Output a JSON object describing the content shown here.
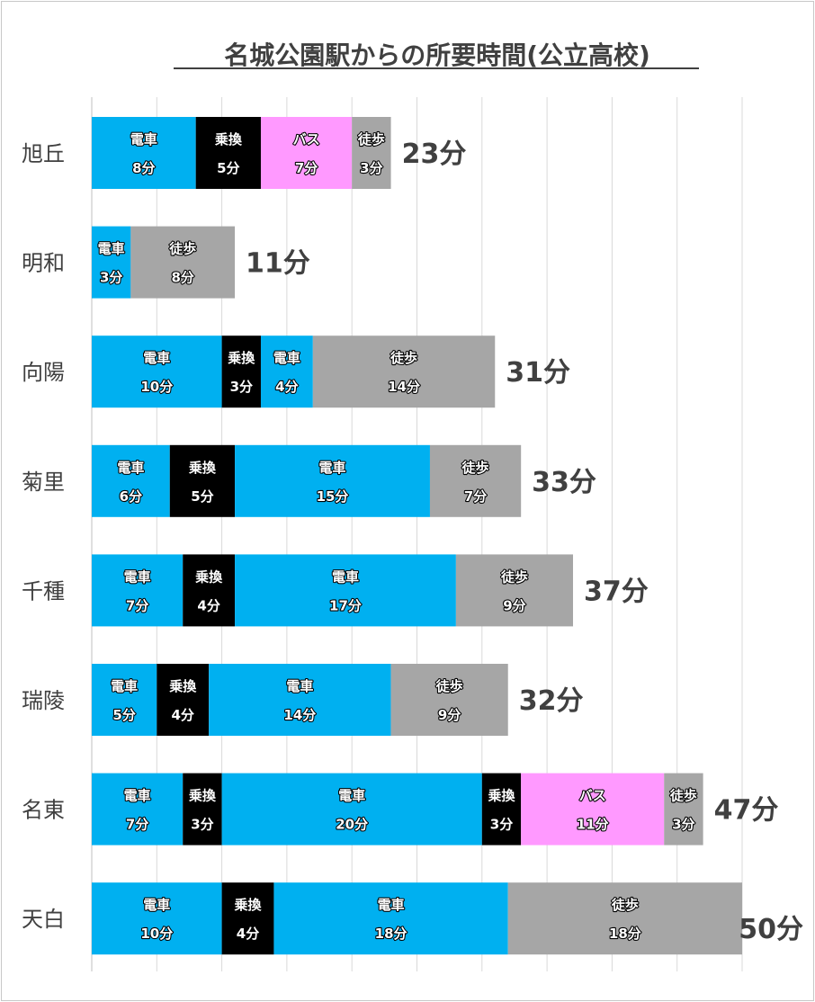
{
  "chart_data": {
    "type": "bar",
    "orientation": "horizontal",
    "stacked": true,
    "title": "名城公園駅からの所要時間(公立高校)",
    "xlim": [
      0,
      50
    ],
    "grid": true,
    "unit": "分",
    "colors": {
      "電車": "#00b0f0",
      "乗換": "#000000",
      "バス": "#ff99ff",
      "徒歩": "#a6a6a6"
    },
    "categories": [
      "旭丘",
      "明和",
      "向陽",
      "菊里",
      "千種",
      "瑞陵",
      "名東",
      "天白"
    ],
    "rows": [
      {
        "category": "旭丘",
        "total_label": "23分",
        "segments": [
          {
            "mode": "電車",
            "value": 8,
            "label": "8分"
          },
          {
            "mode": "乗換",
            "value": 5,
            "label": "5分"
          },
          {
            "mode": "バス",
            "value": 7,
            "label": "7分"
          },
          {
            "mode": "徒歩",
            "value": 3,
            "label": "3分"
          }
        ]
      },
      {
        "category": "明和",
        "total_label": "11分",
        "segments": [
          {
            "mode": "電車",
            "value": 3,
            "label": "3分"
          },
          {
            "mode": "徒歩",
            "value": 8,
            "label": "8分"
          }
        ]
      },
      {
        "category": "向陽",
        "total_label": "31分",
        "segments": [
          {
            "mode": "電車",
            "value": 10,
            "label": "10分"
          },
          {
            "mode": "乗換",
            "value": 3,
            "label": "3分"
          },
          {
            "mode": "電車",
            "value": 4,
            "label": "4分"
          },
          {
            "mode": "徒歩",
            "value": 14,
            "label": "14分"
          }
        ]
      },
      {
        "category": "菊里",
        "total_label": "33分",
        "segments": [
          {
            "mode": "電車",
            "value": 6,
            "label": "6分"
          },
          {
            "mode": "乗換",
            "value": 5,
            "label": "5分"
          },
          {
            "mode": "電車",
            "value": 15,
            "label": "15分"
          },
          {
            "mode": "徒歩",
            "value": 7,
            "label": "7分"
          }
        ]
      },
      {
        "category": "千種",
        "total_label": "37分",
        "segments": [
          {
            "mode": "電車",
            "value": 7,
            "label": "7分"
          },
          {
            "mode": "乗換",
            "value": 4,
            "label": "4分"
          },
          {
            "mode": "電車",
            "value": 17,
            "label": "17分"
          },
          {
            "mode": "徒歩",
            "value": 9,
            "label": "9分"
          }
        ]
      },
      {
        "category": "瑞陵",
        "total_label": "32分",
        "segments": [
          {
            "mode": "電車",
            "value": 5,
            "label": "5分"
          },
          {
            "mode": "乗換",
            "value": 4,
            "label": "4分"
          },
          {
            "mode": "電車",
            "value": 14,
            "label": "14分"
          },
          {
            "mode": "徒歩",
            "value": 9,
            "label": "9分"
          }
        ]
      },
      {
        "category": "名東",
        "total_label": "47分",
        "segments": [
          {
            "mode": "電車",
            "value": 7,
            "label": "7分"
          },
          {
            "mode": "乗換",
            "value": 3,
            "label": "3分"
          },
          {
            "mode": "電車",
            "value": 20,
            "label": "20分"
          },
          {
            "mode": "乗換",
            "value": 3,
            "label": "3分"
          },
          {
            "mode": "バス",
            "value": 11,
            "label": "11分"
          },
          {
            "mode": "徒歩",
            "value": 3,
            "label": "3分"
          }
        ]
      },
      {
        "category": "天白",
        "total_label": "50分",
        "segments": [
          {
            "mode": "電車",
            "value": 10,
            "label": "10分"
          },
          {
            "mode": "乗換",
            "value": 4,
            "label": "4分"
          },
          {
            "mode": "電車",
            "value": 18,
            "label": "18分"
          },
          {
            "mode": "徒歩",
            "value": 18,
            "label": "18分"
          }
        ]
      }
    ]
  }
}
